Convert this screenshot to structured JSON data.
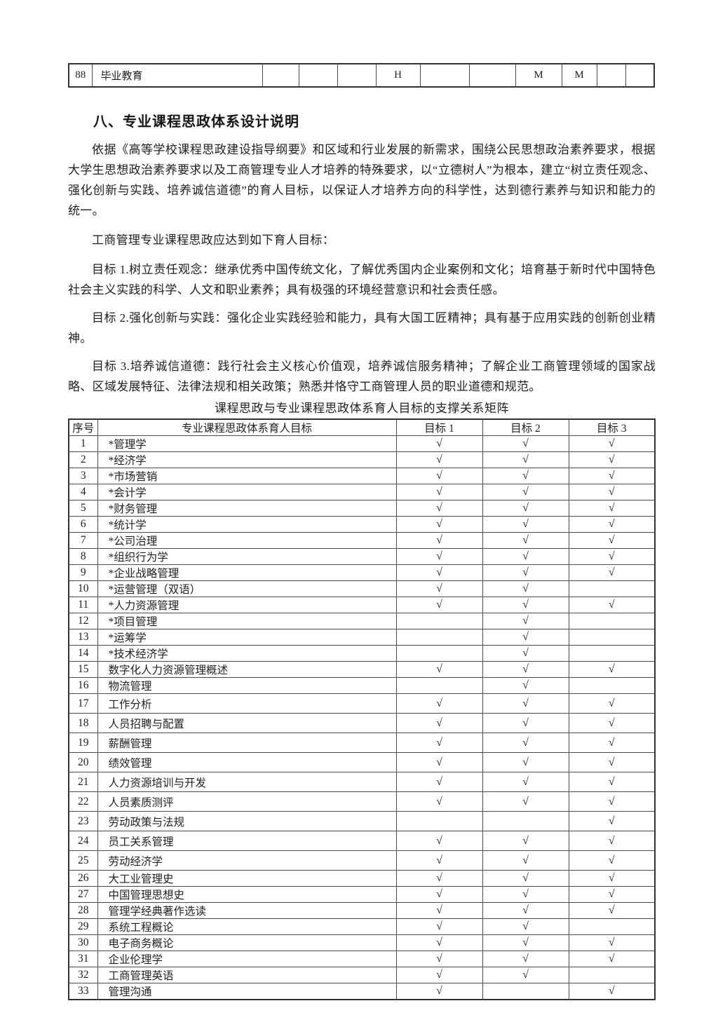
{
  "continuation_table": {
    "cells": [
      "88",
      "毕业教育",
      "",
      "",
      "",
      "H",
      "",
      "",
      "M",
      "M",
      "",
      ""
    ]
  },
  "heading": "八、专业课程思政体系设计说明",
  "paragraphs": [
    "依据《高等学校课程思政建设指导纲要》和区域和行业发展的新需求，围绕公民思想政治素养要求，根据大学生思想政治素养要求以及工商管理专业人才培养的特殊要求，以“立德树人”为根本，建立“树立责任观念、强化创新与实践、培养诚信道德”的育人目标，以保证人才培养方向的科学性，达到德行素养与知识和能力的统一。",
    "工商管理专业课程思政应达到如下育人目标：",
    "目标 1.树立责任观念：继承优秀中国传统文化，了解优秀国内企业案例和文化；培育基于新时代中国特色社会主义实践的科学、人文和职业素养；具有极强的环境经营意识和社会责任感。",
    "目标 2.强化创新与实践：强化企业实践经验和能力，具有大国工匠精神；具有基于应用实践的创新创业精神。",
    "目标 3.培养诚信道德：践行社会主义核心价值观，培养诚信服务精神；了解企业工商管理领域的国家战略、区域发展特征、法律法规和相关政策；熟悉并恪守工商管理人员的职业道德和规范。"
  ],
  "matrix": {
    "title": "课程思政与专业课程思政体系育人目标的支撑关系矩阵",
    "headers": [
      "序号",
      "专业课程思政体系育人目标",
      "目标 1",
      "目标 2",
      "目标 3"
    ],
    "rows": [
      {
        "no": "1",
        "name": "*管理学",
        "g1": "√",
        "g2": "√",
        "g3": "√"
      },
      {
        "no": "2",
        "name": "*经济学",
        "g1": "√",
        "g2": "√",
        "g3": "√"
      },
      {
        "no": "3",
        "name": "*市场营销",
        "g1": "√",
        "g2": "√",
        "g3": "√"
      },
      {
        "no": "4",
        "name": "*会计学",
        "g1": "√",
        "g2": "√",
        "g3": "√"
      },
      {
        "no": "5",
        "name": "*财务管理",
        "g1": "√",
        "g2": "√",
        "g3": "√"
      },
      {
        "no": "6",
        "name": "*统计学",
        "g1": "√",
        "g2": "√",
        "g3": "√"
      },
      {
        "no": "7",
        "name": "*公司治理",
        "g1": "√",
        "g2": "√",
        "g3": "√"
      },
      {
        "no": "8",
        "name": "*组织行为学",
        "g1": "√",
        "g2": "√",
        "g3": "√"
      },
      {
        "no": "9",
        "name": "*企业战略管理",
        "g1": "√",
        "g2": "√",
        "g3": "√"
      },
      {
        "no": "10",
        "name": "*运营管理（双语）",
        "g1": "√",
        "g2": "√",
        "g3": ""
      },
      {
        "no": "11",
        "name": "*人力资源管理",
        "g1": "√",
        "g2": "√",
        "g3": "√"
      },
      {
        "no": "12",
        "name": "*项目管理",
        "g1": "",
        "g2": "√",
        "g3": ""
      },
      {
        "no": "13",
        "name": "*运筹学",
        "g1": "",
        "g2": "√",
        "g3": ""
      },
      {
        "no": "14",
        "name": "*技术经济学",
        "g1": "",
        "g2": "√",
        "g3": ""
      },
      {
        "no": "15",
        "name": "数字化人力资源管理概述",
        "g1": "√",
        "g2": "√",
        "g3": "√"
      },
      {
        "no": "16",
        "name": "物流管理",
        "g1": "",
        "g2": "√",
        "g3": ""
      },
      {
        "no": "17",
        "name": "工作分析",
        "g1": "√",
        "g2": "√",
        "g3": "√"
      },
      {
        "no": "18",
        "name": "人员招聘与配置",
        "g1": "√",
        "g2": "√",
        "g3": "√"
      },
      {
        "no": "19",
        "name": "薪酬管理",
        "g1": "√",
        "g2": "√",
        "g3": "√"
      },
      {
        "no": "20",
        "name": "绩效管理",
        "g1": "√",
        "g2": "√",
        "g3": "√"
      },
      {
        "no": "21",
        "name": "人力资源培训与开发",
        "g1": "√",
        "g2": "√",
        "g3": "√"
      },
      {
        "no": "22",
        "name": "人员素质测评",
        "g1": "√",
        "g2": "√",
        "g3": "√"
      },
      {
        "no": "23",
        "name": "劳动政策与法规",
        "g1": "",
        "g2": "",
        "g3": "√"
      },
      {
        "no": "24",
        "name": "员工关系管理",
        "g1": "√",
        "g2": "√",
        "g3": "√"
      },
      {
        "no": "25",
        "name": "劳动经济学",
        "g1": "√",
        "g2": "√",
        "g3": "√"
      },
      {
        "no": "26",
        "name": "大工业管理史",
        "g1": "√",
        "g2": "√",
        "g3": "√"
      },
      {
        "no": "27",
        "name": "中国管理思想史",
        "g1": "√",
        "g2": "√",
        "g3": "√"
      },
      {
        "no": "28",
        "name": "管理学经典著作选读",
        "g1": "√",
        "g2": "√",
        "g3": "√"
      },
      {
        "no": "29",
        "name": "系统工程概论",
        "g1": "√",
        "g2": "√",
        "g3": ""
      },
      {
        "no": "30",
        "name": "电子商务概论",
        "g1": "√",
        "g2": "√",
        "g3": "√"
      },
      {
        "no": "31",
        "name": "企业伦理学",
        "g1": "√",
        "g2": "√",
        "g3": "√"
      },
      {
        "no": "32",
        "name": "工商管理英语",
        "g1": "√",
        "g2": "√",
        "g3": ""
      },
      {
        "no": "33",
        "name": "管理沟通",
        "g1": "√",
        "g2": "",
        "g3": "√"
      }
    ]
  }
}
